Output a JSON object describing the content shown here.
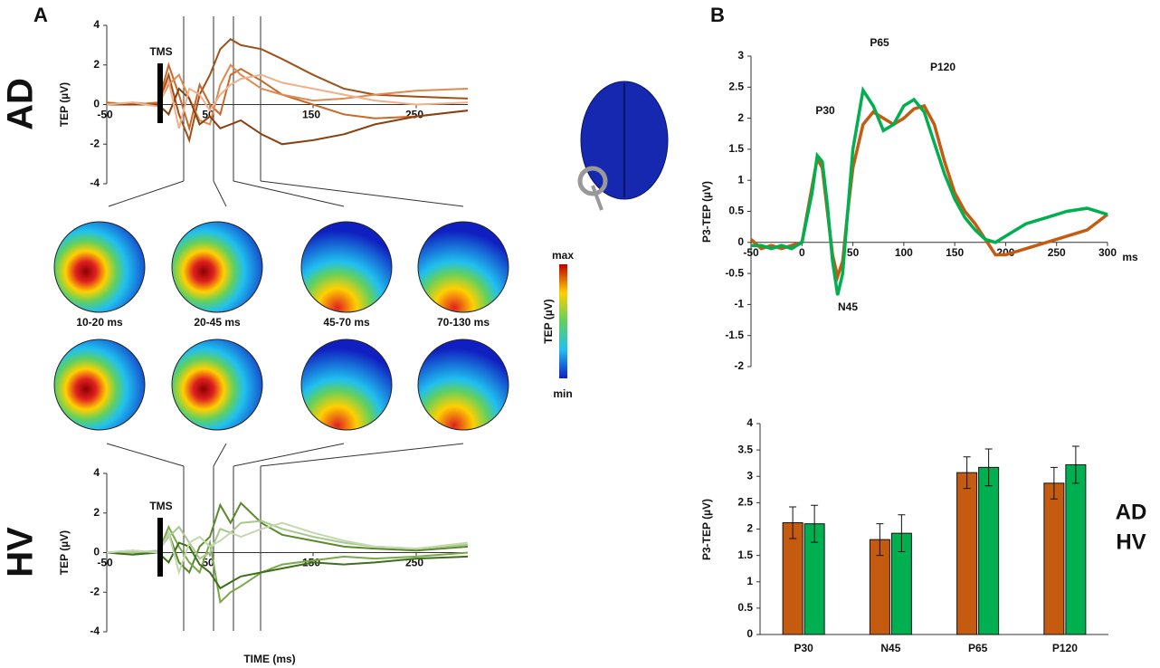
{
  "panels": {
    "a": "A",
    "b": "B"
  },
  "topomaps": {
    "labels": [
      "10-20 ms",
      "20-45 ms",
      "45-70 ms",
      "70-130 ms"
    ],
    "colorbar": {
      "title": "TEP (µV)",
      "max": "max",
      "min": "min"
    }
  },
  "chart_data": [
    {
      "type": "line",
      "group_label": "AD",
      "ylabel": "TEP (µV)",
      "annotations": [
        "TMS"
      ],
      "x": [
        -50,
        -25,
        0,
        10,
        20,
        30,
        40,
        50,
        60,
        70,
        80,
        100,
        120,
        150,
        180,
        210,
        250,
        300
      ],
      "series": [
        {
          "color": "#a0501a",
          "values": [
            0,
            0,
            0,
            1.5,
            -0.5,
            -1.8,
            0.5,
            1.5,
            2.8,
            3.3,
            3,
            2.8,
            2.3,
            1.5,
            0.8,
            0.5,
            0.4,
            0.3
          ]
        },
        {
          "color": "#c8692a",
          "values": [
            0.1,
            0,
            0.1,
            2,
            0.5,
            -1.2,
            1,
            0,
            -0.5,
            1.5,
            1.8,
            1.2,
            0.5,
            0,
            -0.5,
            -0.7,
            -0.6,
            -0.3
          ]
        },
        {
          "color": "#e08a50",
          "values": [
            0,
            0.1,
            0,
            1,
            1.5,
            0.3,
            -0.8,
            -1,
            1,
            2,
            1.5,
            0.8,
            0.5,
            0.2,
            0.3,
            0.5,
            0.7,
            0.8
          ]
        },
        {
          "color": "#8a4010",
          "values": [
            0,
            0,
            0,
            -0.5,
            0.8,
            0.3,
            -1,
            -0.6,
            -1.2,
            -1,
            -0.8,
            -1.5,
            -2,
            -1.8,
            -1.5,
            -1,
            -0.6,
            -0.3
          ]
        },
        {
          "color": "#f0b08a",
          "values": [
            0,
            0.1,
            -0.1,
            1.2,
            -1.2,
            0.8,
            0.5,
            -0.3,
            0.5,
            1,
            1.3,
            1.5,
            1.1,
            0.8,
            0.5,
            0.2,
            0,
            0.1
          ]
        }
      ],
      "xlim": [
        -50,
        300
      ],
      "xticks": [
        -50,
        50,
        150,
        250
      ],
      "ylim": [
        -4,
        4
      ],
      "yticks": [
        -4,
        -2,
        0,
        2,
        4
      ]
    },
    {
      "type": "line",
      "group_label": "HV",
      "ylabel": "TEP (µV)",
      "xlabel": "TIME (ms)",
      "annotations": [
        "TMS"
      ],
      "x": [
        -50,
        -25,
        0,
        10,
        20,
        30,
        40,
        50,
        60,
        70,
        80,
        100,
        120,
        150,
        180,
        210,
        250,
        300
      ],
      "series": [
        {
          "color": "#5a8a2a",
          "values": [
            0,
            0,
            0,
            1,
            -0.5,
            -1,
            0.3,
            0.8,
            2.4,
            1.5,
            2.5,
            1.5,
            0.9,
            0.6,
            0.3,
            0.2,
            0.1,
            0.3
          ]
        },
        {
          "color": "#7aa84a",
          "values": [
            0,
            0.1,
            0,
            1.3,
            0.3,
            -0.5,
            -1,
            0.5,
            -2.5,
            -2,
            -1.7,
            -1,
            -0.6,
            -0.4,
            -0.2,
            -0.3,
            -0.2,
            0
          ]
        },
        {
          "color": "#a8c890",
          "values": [
            0,
            0,
            0.1,
            0.8,
            1.3,
            0.5,
            -0.3,
            0,
            1.2,
            1,
            1.5,
            1.6,
            1.2,
            0.8,
            0.5,
            0.3,
            0.2,
            0.4
          ]
        },
        {
          "color": "#3f6f1a",
          "values": [
            0,
            -0.1,
            0,
            -0.5,
            0.5,
            0.3,
            -0.6,
            -1,
            -1.8,
            -1.5,
            -1.2,
            -1,
            -0.8,
            -0.5,
            -0.6,
            -0.5,
            -0.3,
            -0.2
          ]
        },
        {
          "color": "#c4d8b0",
          "values": [
            0,
            0.1,
            0,
            1,
            -1,
            0.5,
            0.8,
            0.3,
            0.6,
            1,
            0.8,
            1.2,
            1.5,
            1,
            0.6,
            0.3,
            0.2,
            0.5
          ]
        }
      ],
      "xlim": [
        -50,
        300
      ],
      "xticks": [
        -50,
        50,
        150,
        250
      ],
      "ylim": [
        -4,
        4
      ],
      "yticks": [
        -4,
        -2,
        0,
        2,
        4
      ]
    },
    {
      "type": "line",
      "ylabel": "P3-TEP (µV)",
      "xlabel": "ms",
      "annotations": [
        "P30",
        "N45",
        "P65",
        "P120"
      ],
      "x": [
        -50,
        -40,
        -30,
        -20,
        -10,
        0,
        10,
        15,
        20,
        25,
        30,
        35,
        40,
        45,
        50,
        60,
        70,
        80,
        90,
        100,
        110,
        120,
        130,
        140,
        150,
        160,
        170,
        180,
        190,
        200,
        220,
        240,
        260,
        280,
        300
      ],
      "series": [
        {
          "color": "#c55a11",
          "values": [
            0.05,
            -0.1,
            -0.05,
            -0.1,
            -0.05,
            0,
            0.9,
            1.35,
            1.2,
            0.5,
            -0.2,
            -0.55,
            -0.3,
            0.5,
            1.2,
            1.9,
            2.1,
            2.0,
            1.9,
            2.0,
            2.15,
            2.2,
            1.9,
            1.3,
            0.8,
            0.5,
            0.3,
            0.05,
            -0.2,
            -0.2,
            -0.1,
            0,
            0.1,
            0.2,
            0.45
          ]
        },
        {
          "color": "#00b050",
          "values": [
            -0.05,
            -0.05,
            -0.1,
            -0.05,
            -0.1,
            0,
            0.8,
            1.4,
            1.3,
            0.6,
            -0.3,
            -0.85,
            -0.5,
            0.5,
            1.5,
            2.45,
            2.2,
            1.8,
            1.9,
            2.2,
            2.3,
            2.1,
            1.6,
            1.1,
            0.7,
            0.4,
            0.2,
            0.05,
            0,
            0.1,
            0.3,
            0.4,
            0.5,
            0.55,
            0.45
          ]
        }
      ],
      "xlim": [
        -50,
        300
      ],
      "xticks": [
        -50,
        0,
        50,
        100,
        150,
        200,
        250,
        300
      ],
      "ylim": [
        -2,
        3
      ],
      "yticks": [
        -2,
        -1.5,
        -1,
        -0.5,
        0,
        0.5,
        1,
        1.5,
        2,
        2.5,
        3
      ]
    },
    {
      "type": "bar",
      "ylabel": "P3-TEP (µV)",
      "categories": [
        "P30",
        "N45",
        "P65",
        "P120"
      ],
      "series": [
        {
          "name": "AD",
          "color": "#c55a11",
          "values": [
            2.12,
            1.8,
            3.07,
            2.87
          ],
          "errors": [
            0.3,
            0.3,
            0.3,
            0.3
          ]
        },
        {
          "name": "HV",
          "color": "#00b050",
          "values": [
            2.1,
            1.92,
            3.17,
            3.22
          ],
          "errors": [
            0.35,
            0.35,
            0.35,
            0.35
          ]
        }
      ],
      "ylim": [
        0,
        4
      ],
      "yticks": [
        0,
        0.5,
        1,
        1.5,
        2,
        2.5,
        3,
        3.5,
        4
      ]
    }
  ]
}
